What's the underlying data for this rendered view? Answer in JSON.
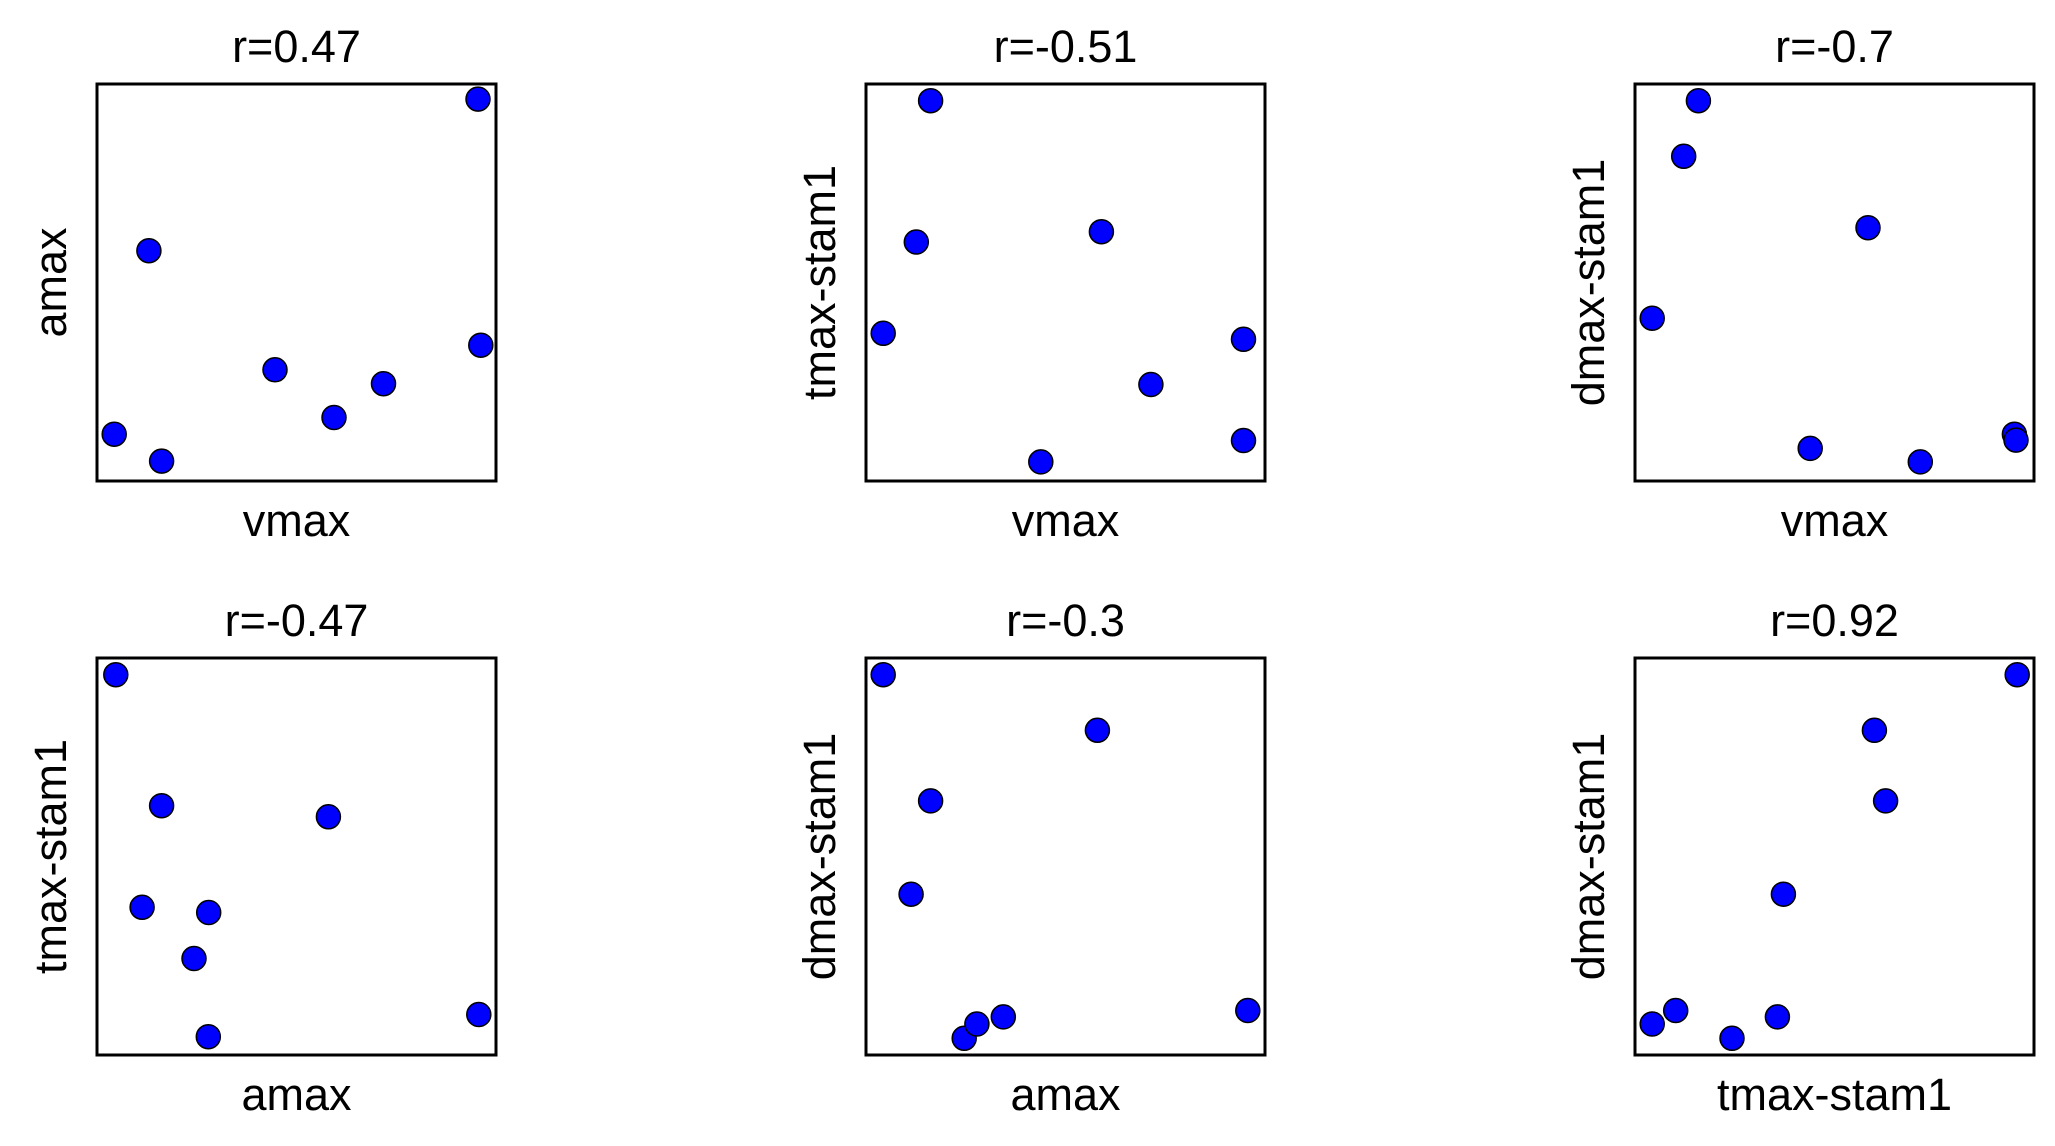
{
  "colors": {
    "point_fill": "#0000ff",
    "point_stroke": "#000000",
    "frame": "#000000",
    "background": "#ffffff"
  },
  "chart_data": [
    {
      "type": "scatter",
      "title": "r=0.47",
      "xlabel": "vmax",
      "ylabel": "amax",
      "xlim": [
        0,
        1
      ],
      "ylim": [
        0,
        1
      ],
      "grid": false,
      "ticks": false,
      "points": [
        {
          "x": 0.043,
          "y": 0.118
        },
        {
          "x": 0.13,
          "y": 0.58
        },
        {
          "x": 0.162,
          "y": 0.05
        },
        {
          "x": 0.446,
          "y": 0.28
        },
        {
          "x": 0.594,
          "y": 0.16
        },
        {
          "x": 0.718,
          "y": 0.245
        },
        {
          "x": 0.955,
          "y": 0.962
        },
        {
          "x": 0.962,
          "y": 0.342
        }
      ]
    },
    {
      "type": "scatter",
      "title": "r=-0.51",
      "xlabel": "vmax",
      "ylabel": "tmax-stam1",
      "xlim": [
        0,
        1
      ],
      "ylim": [
        0,
        1
      ],
      "grid": false,
      "ticks": false,
      "points": [
        {
          "x": 0.043,
          "y": 0.372
        },
        {
          "x": 0.126,
          "y": 0.602
        },
        {
          "x": 0.162,
          "y": 0.958
        },
        {
          "x": 0.438,
          "y": 0.048
        },
        {
          "x": 0.59,
          "y": 0.628
        },
        {
          "x": 0.714,
          "y": 0.243
        },
        {
          "x": 0.946,
          "y": 0.357
        },
        {
          "x": 0.946,
          "y": 0.102
        }
      ]
    },
    {
      "type": "scatter",
      "title": "r=-0.7",
      "xlabel": "vmax",
      "ylabel": "dmax-stam1",
      "xlim": [
        0,
        1
      ],
      "ylim": [
        0,
        1
      ],
      "grid": false,
      "ticks": false,
      "points": [
        {
          "x": 0.043,
          "y": 0.41
        },
        {
          "x": 0.122,
          "y": 0.818
        },
        {
          "x": 0.159,
          "y": 0.958
        },
        {
          "x": 0.439,
          "y": 0.082
        },
        {
          "x": 0.584,
          "y": 0.638
        },
        {
          "x": 0.715,
          "y": 0.048
        },
        {
          "x": 0.951,
          "y": 0.118
        },
        {
          "x": 0.955,
          "y": 0.103
        }
      ]
    },
    {
      "type": "scatter",
      "title": "r=-0.47",
      "xlabel": "amax",
      "ylabel": "tmax-stam1",
      "xlim": [
        0,
        1
      ],
      "ylim": [
        0,
        1
      ],
      "grid": false,
      "ticks": false,
      "points": [
        {
          "x": 0.047,
          "y": 0.958
        },
        {
          "x": 0.113,
          "y": 0.372
        },
        {
          "x": 0.162,
          "y": 0.628
        },
        {
          "x": 0.243,
          "y": 0.243
        },
        {
          "x": 0.28,
          "y": 0.359
        },
        {
          "x": 0.279,
          "y": 0.046
        },
        {
          "x": 0.58,
          "y": 0.6
        },
        {
          "x": 0.957,
          "y": 0.102
        }
      ]
    },
    {
      "type": "scatter",
      "title": "r=-0.3",
      "xlabel": "amax",
      "ylabel": "dmax-stam1",
      "xlim": [
        0,
        1
      ],
      "ylim": [
        0,
        1
      ],
      "grid": false,
      "ticks": false,
      "points": [
        {
          "x": 0.043,
          "y": 0.958
        },
        {
          "x": 0.113,
          "y": 0.405
        },
        {
          "x": 0.162,
          "y": 0.64
        },
        {
          "x": 0.246,
          "y": 0.042
        },
        {
          "x": 0.278,
          "y": 0.078
        },
        {
          "x": 0.344,
          "y": 0.096
        },
        {
          "x": 0.58,
          "y": 0.818
        },
        {
          "x": 0.957,
          "y": 0.112
        }
      ]
    },
    {
      "type": "scatter",
      "title": "r=0.92",
      "xlabel": "tmax-stam1",
      "ylabel": "dmax-stam1",
      "xlim": [
        0,
        1
      ],
      "ylim": [
        0,
        1
      ],
      "grid": false,
      "ticks": false,
      "points": [
        {
          "x": 0.043,
          "y": 0.078
        },
        {
          "x": 0.102,
          "y": 0.112
        },
        {
          "x": 0.243,
          "y": 0.042
        },
        {
          "x": 0.357,
          "y": 0.096
        },
        {
          "x": 0.372,
          "y": 0.405
        },
        {
          "x": 0.6,
          "y": 0.818
        },
        {
          "x": 0.628,
          "y": 0.64
        },
        {
          "x": 0.958,
          "y": 0.958
        }
      ]
    }
  ]
}
